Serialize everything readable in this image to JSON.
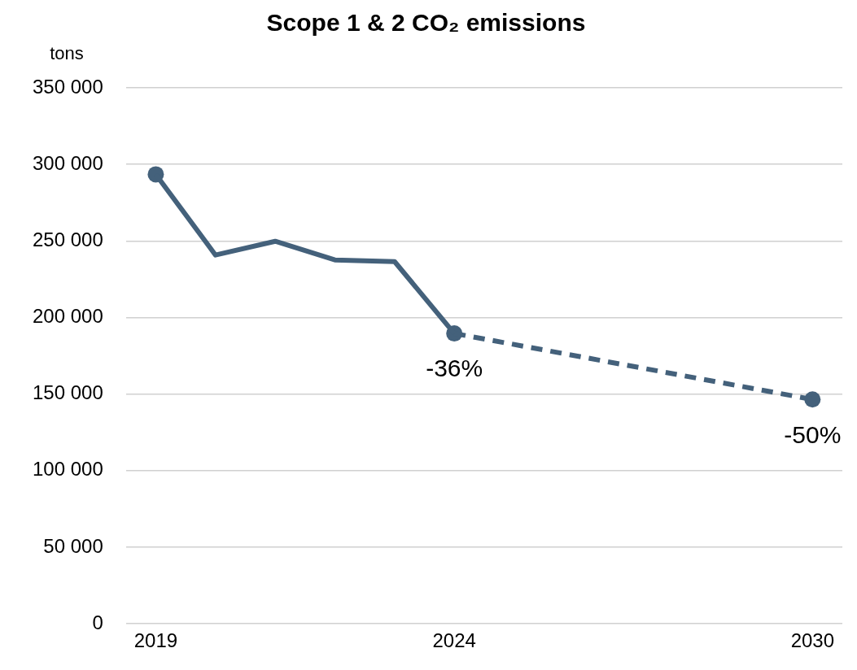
{
  "chart_data": {
    "type": "line",
    "title": "Scope 1 & 2 CO₂ emissions",
    "ylabel": "tons",
    "series": [
      {
        "color": "#44617b",
        "line_style": "solid",
        "marker": "none",
        "x": [
          2019,
          2020,
          2021,
          2022,
          2023,
          2024
        ],
        "values": [
          293500,
          240800,
          249800,
          237600,
          236500,
          189600
        ]
      },
      {
        "color": "#44617b",
        "line_style": "dashed",
        "marker": "none",
        "x": [
          2024,
          2030
        ],
        "values": [
          189600,
          146500
        ]
      },
      {
        "type": "scatter",
        "color": "#44617b",
        "marker": "circle",
        "x": [
          2019,
          2024,
          2030
        ],
        "values": [
          293500,
          189600,
          146500
        ]
      }
    ],
    "annotations": [
      {
        "text": "-36%",
        "x": 2024,
        "y": 189600
      },
      {
        "text": "-50%",
        "x": 2030,
        "y": 146500
      }
    ],
    "xlim": [
      2018.5,
      2030.5
    ],
    "xticks": [
      2019,
      2024,
      2030
    ],
    "ylim": [
      0,
      350000
    ],
    "yticks": [
      0,
      {
        "value": 50000,
        "label": "50 000"
      },
      {
        "value": 100000,
        "label": "100 000"
      },
      {
        "value": 150000,
        "label": "150 000"
      },
      {
        "value": 200000,
        "label": "200 000"
      },
      {
        "value": 250000,
        "label": "250 000"
      },
      {
        "value": 300000,
        "label": "300 000"
      },
      {
        "value": 350000,
        "label": "350 000"
      }
    ],
    "grid": "y",
    "legend": false
  }
}
